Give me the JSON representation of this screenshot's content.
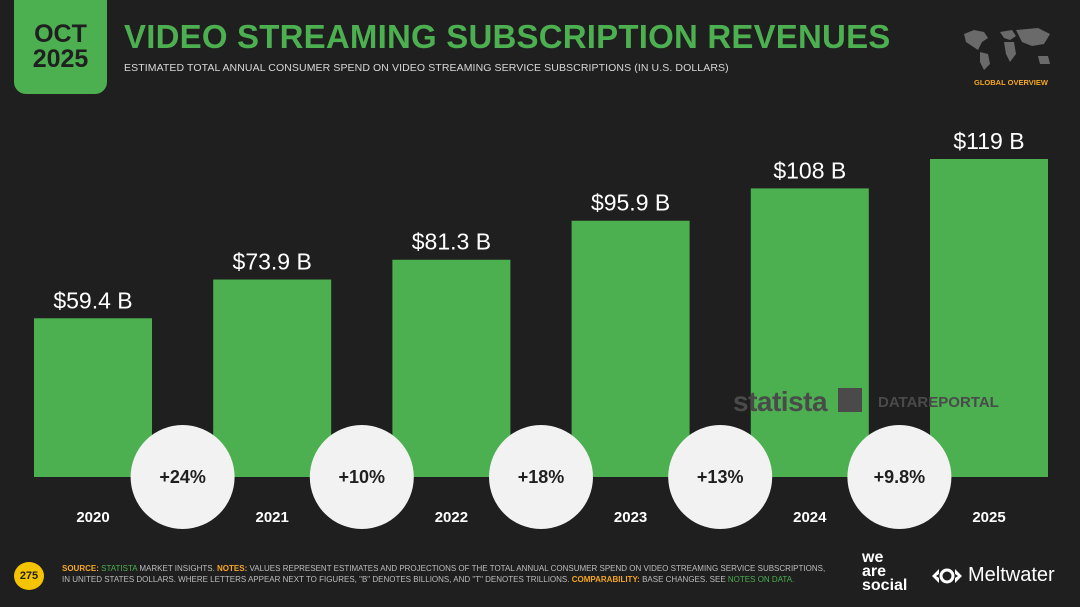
{
  "badge": {
    "month": "OCT",
    "year": "2025"
  },
  "header": {
    "title": "VIDEO STREAMING SUBSCRIPTION REVENUES",
    "subtitle": "ESTIMATED TOTAL ANNUAL CONSUMER SPEND ON VIDEO STREAMING SERVICE SUBSCRIPTIONS (IN U.S. DOLLARS)",
    "section_label": "GLOBAL OVERVIEW"
  },
  "chart_data": {
    "type": "bar",
    "categories": [
      "2020",
      "2021",
      "2022",
      "2023",
      "2024",
      "2025"
    ],
    "values": [
      59.4,
      73.9,
      81.3,
      95.9,
      108,
      119
    ],
    "value_labels": [
      "$59.4 B",
      "$73.9 B",
      "$81.3 B",
      "$95.9 B",
      "$108 B",
      "$119 B"
    ],
    "growth_labels": [
      "+24%",
      "+10%",
      "+18%",
      "+13%",
      "+9.8%"
    ],
    "unit": "U.S. dollars (billions)",
    "ylim": [
      0,
      119
    ],
    "grid": false,
    "colors": {
      "bar": "#4caf50",
      "bubble": "#f2f2f2",
      "text": "#ffffff",
      "bubble_text": "#1f1f1f"
    }
  },
  "watermarks": {
    "statista": "statista",
    "datareportal": "DATAREPORTAL"
  },
  "footer": {
    "page_number": "275",
    "source_label": "SOURCE:",
    "source_link": "STATISTA",
    "source_text": "MARKET INSIGHTS.",
    "notes_label": "NOTES:",
    "notes_text": "VALUES REPRESENT ESTIMATES AND PROJECTIONS OF THE TOTAL ANNUAL CONSUMER SPEND ON VIDEO STREAMING SERVICE SUBSCRIPTIONS, IN UNITED STATES DOLLARS. WHERE LETTERS APPEAR NEXT TO FIGURES, \"B\" DENOTES BILLIONS, AND \"T\" DENOTES TRILLIONS.",
    "comparability_label": "COMPARABILITY:",
    "comparability_text": "BASE CHANGES. SEE",
    "notes_link": "NOTES ON DATA."
  },
  "brands": {
    "we": "we",
    "are": "are",
    "social": "social",
    "meltwater": "Meltwater"
  }
}
